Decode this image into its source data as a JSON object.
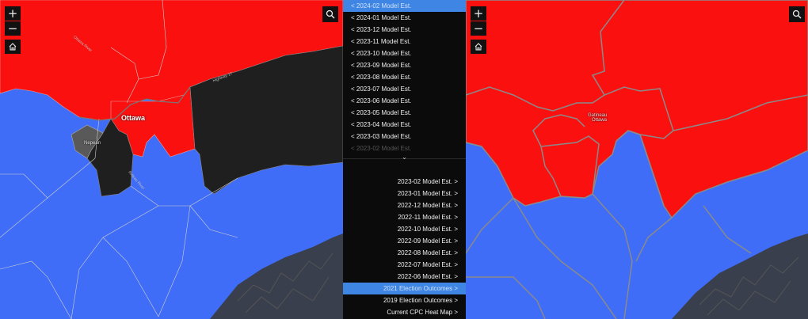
{
  "left_map": {
    "city_label": "Ottawa",
    "sub_label": "Nepean",
    "road_labels": [
      "Ottawa River",
      "Highway 17",
      "Rideau River"
    ],
    "colors": {
      "blue": "#3f6df7",
      "red": "#fb1010",
      "dark": "#1f1f1f",
      "gray": "#595959",
      "boundary": "#cfcfcf"
    }
  },
  "right_map": {
    "city_label": "Ottawa",
    "sub_label": "Gatineau",
    "colors": {
      "blue": "#3f6df7",
      "red": "#fb1010",
      "boundary": "#8a8a8a"
    }
  },
  "controls": {
    "zoom_in": "+",
    "zoom_out": "−",
    "home_icon": "home-icon",
    "search_icon": "search-icon"
  },
  "prev_list": {
    "items": [
      {
        "label": "< 2024-02 Model Est.",
        "selected": true
      },
      {
        "label": "< 2024-01 Model Est."
      },
      {
        "label": "< 2023-12 Model Est."
      },
      {
        "label": "< 2023-11 Model Est."
      },
      {
        "label": "< 2023-10 Model Est."
      },
      {
        "label": "< 2023-09 Model Est."
      },
      {
        "label": "< 2023-08 Model Est."
      },
      {
        "label": "< 2023-07 Model Est."
      },
      {
        "label": "< 2023-06 Model Est."
      },
      {
        "label": "< 2023-05 Model Est."
      },
      {
        "label": "< 2023-04 Model Est."
      },
      {
        "label": "< 2023-03 Model Est."
      },
      {
        "label": "< 2023-02 Model Est."
      }
    ],
    "chevron": "⌄"
  },
  "next_list": {
    "items": [
      {
        "label": "2023-02 Model Est. >"
      },
      {
        "label": "2023-01 Model Est. >"
      },
      {
        "label": "2022-12 Model Est. >"
      },
      {
        "label": "2022-11 Model Est. >"
      },
      {
        "label": "2022-10 Model Est. >"
      },
      {
        "label": "2022-09 Model Est. >"
      },
      {
        "label": "2022-08 Model Est. >"
      },
      {
        "label": "2022-07 Model Est. >"
      },
      {
        "label": "2022-06 Model Est. >"
      },
      {
        "label": "2021 Election Outcomes >",
        "selected": true
      },
      {
        "label": "2019 Election Outcomes >"
      },
      {
        "label": "Current CPC Heat Map >"
      }
    ]
  }
}
